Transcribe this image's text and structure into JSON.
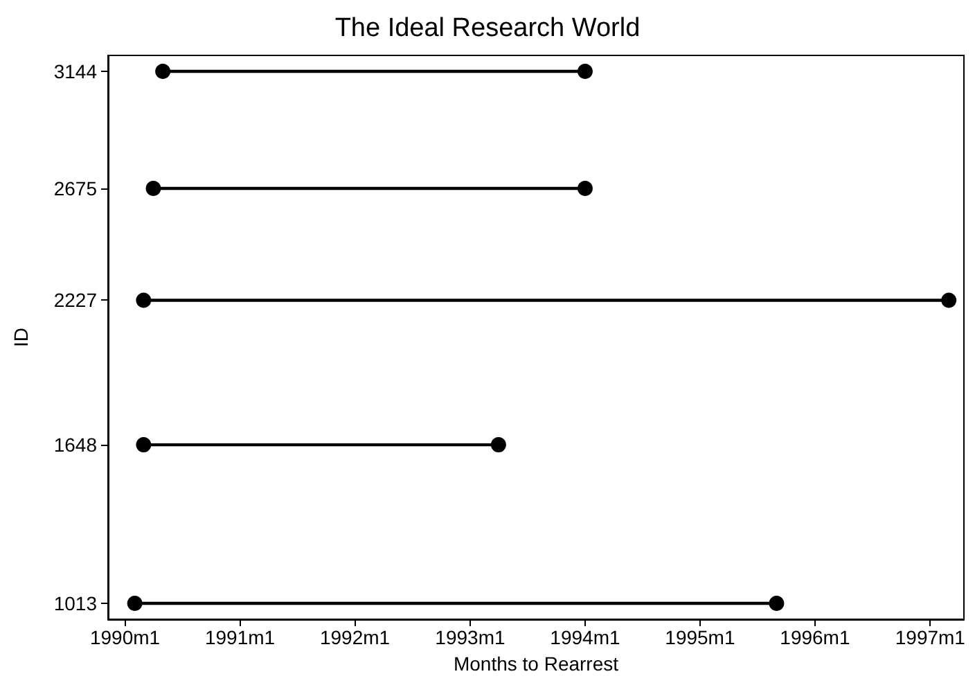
{
  "chart_data": {
    "type": "line",
    "title": "The Ideal Research World",
    "xlabel": "Months to Rearrest",
    "ylabel": "ID",
    "series": [
      {
        "color": "#000000",
        "x": [
          "1990-05",
          "1994-01"
        ],
        "values": [
          3144,
          3144
        ]
      },
      {
        "color": "#000000",
        "x": [
          "1990-04",
          "1994-01"
        ],
        "values": [
          2675,
          2675
        ]
      },
      {
        "color": "#000000",
        "x": [
          "1990-03",
          "1997-03"
        ],
        "values": [
          2227,
          2227
        ]
      },
      {
        "color": "#000000",
        "x": [
          "1990-03",
          "1993-04"
        ],
        "values": [
          1648,
          1648
        ]
      },
      {
        "color": "#000000",
        "x": [
          "1990-02",
          "1995-09"
        ],
        "values": [
          1013,
          1013
        ]
      }
    ],
    "xlim": [
      "1989-11-08",
      "1997-04-18"
    ],
    "xticks": [
      {
        "value": "1990-01",
        "label": "1990m1"
      },
      {
        "value": "1991-01",
        "label": "1991m1"
      },
      {
        "value": "1992-01",
        "label": "1992m1"
      },
      {
        "value": "1993-01",
        "label": "1993m1"
      },
      {
        "value": "1994-01",
        "label": "1994m1"
      },
      {
        "value": "1995-01",
        "label": "1995m1"
      },
      {
        "value": "1996-01",
        "label": "1996m1"
      },
      {
        "value": "1997-01",
        "label": "1997m1"
      }
    ],
    "ylim": [
      949,
      3208
    ],
    "yticks": [
      1013,
      1648,
      2227,
      2675,
      3144
    ],
    "grid": false,
    "marker": "circle",
    "line_style": "solid"
  }
}
